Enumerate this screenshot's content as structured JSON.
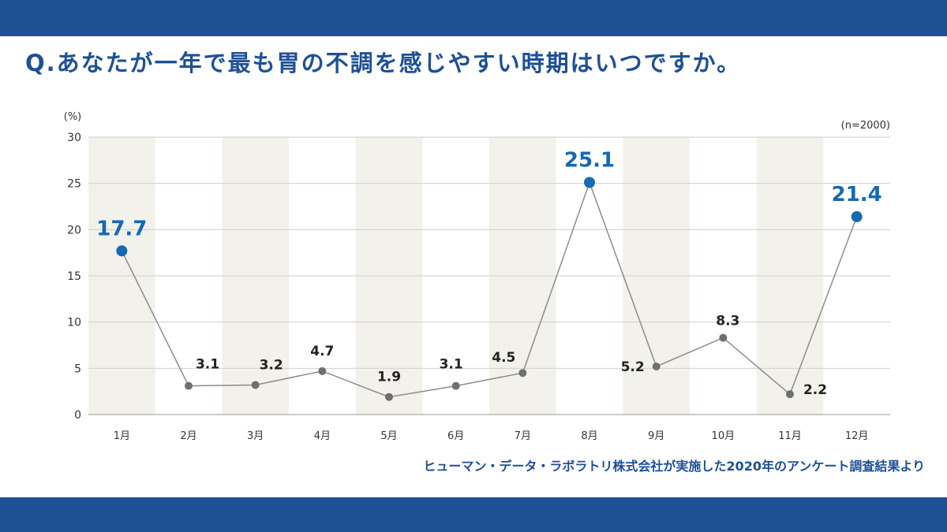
{
  "question": "Q.あなたが一年で最も胃の不調を感じやすい時期はいつですか。",
  "source": "ヒューマン・データ・ラボラトリ株式会社が実施した2020年のアンケート調査結果より",
  "colors": {
    "brand": "#1e5096",
    "highlight": "#1569b5",
    "line": "#8c8c8c",
    "point": "#6f6f6f",
    "band": "#f3f1ec"
  },
  "chart_data": {
    "type": "line",
    "unit_label": "(%)",
    "n_label": "(n=2000)",
    "categories": [
      "1月",
      "2月",
      "3月",
      "4月",
      "5月",
      "6月",
      "7月",
      "8月",
      "9月",
      "10月",
      "11月",
      "12月"
    ],
    "values": [
      17.7,
      3.1,
      3.2,
      4.7,
      1.9,
      3.1,
      4.5,
      25.1,
      5.2,
      8.3,
      2.2,
      21.4
    ],
    "highlighted": [
      "1月",
      "8月",
      "12月"
    ],
    "ylim": [
      0,
      30
    ],
    "yticks": [
      0,
      5,
      10,
      15,
      20,
      25,
      30
    ],
    "grid": true,
    "alternating_bands": true
  }
}
